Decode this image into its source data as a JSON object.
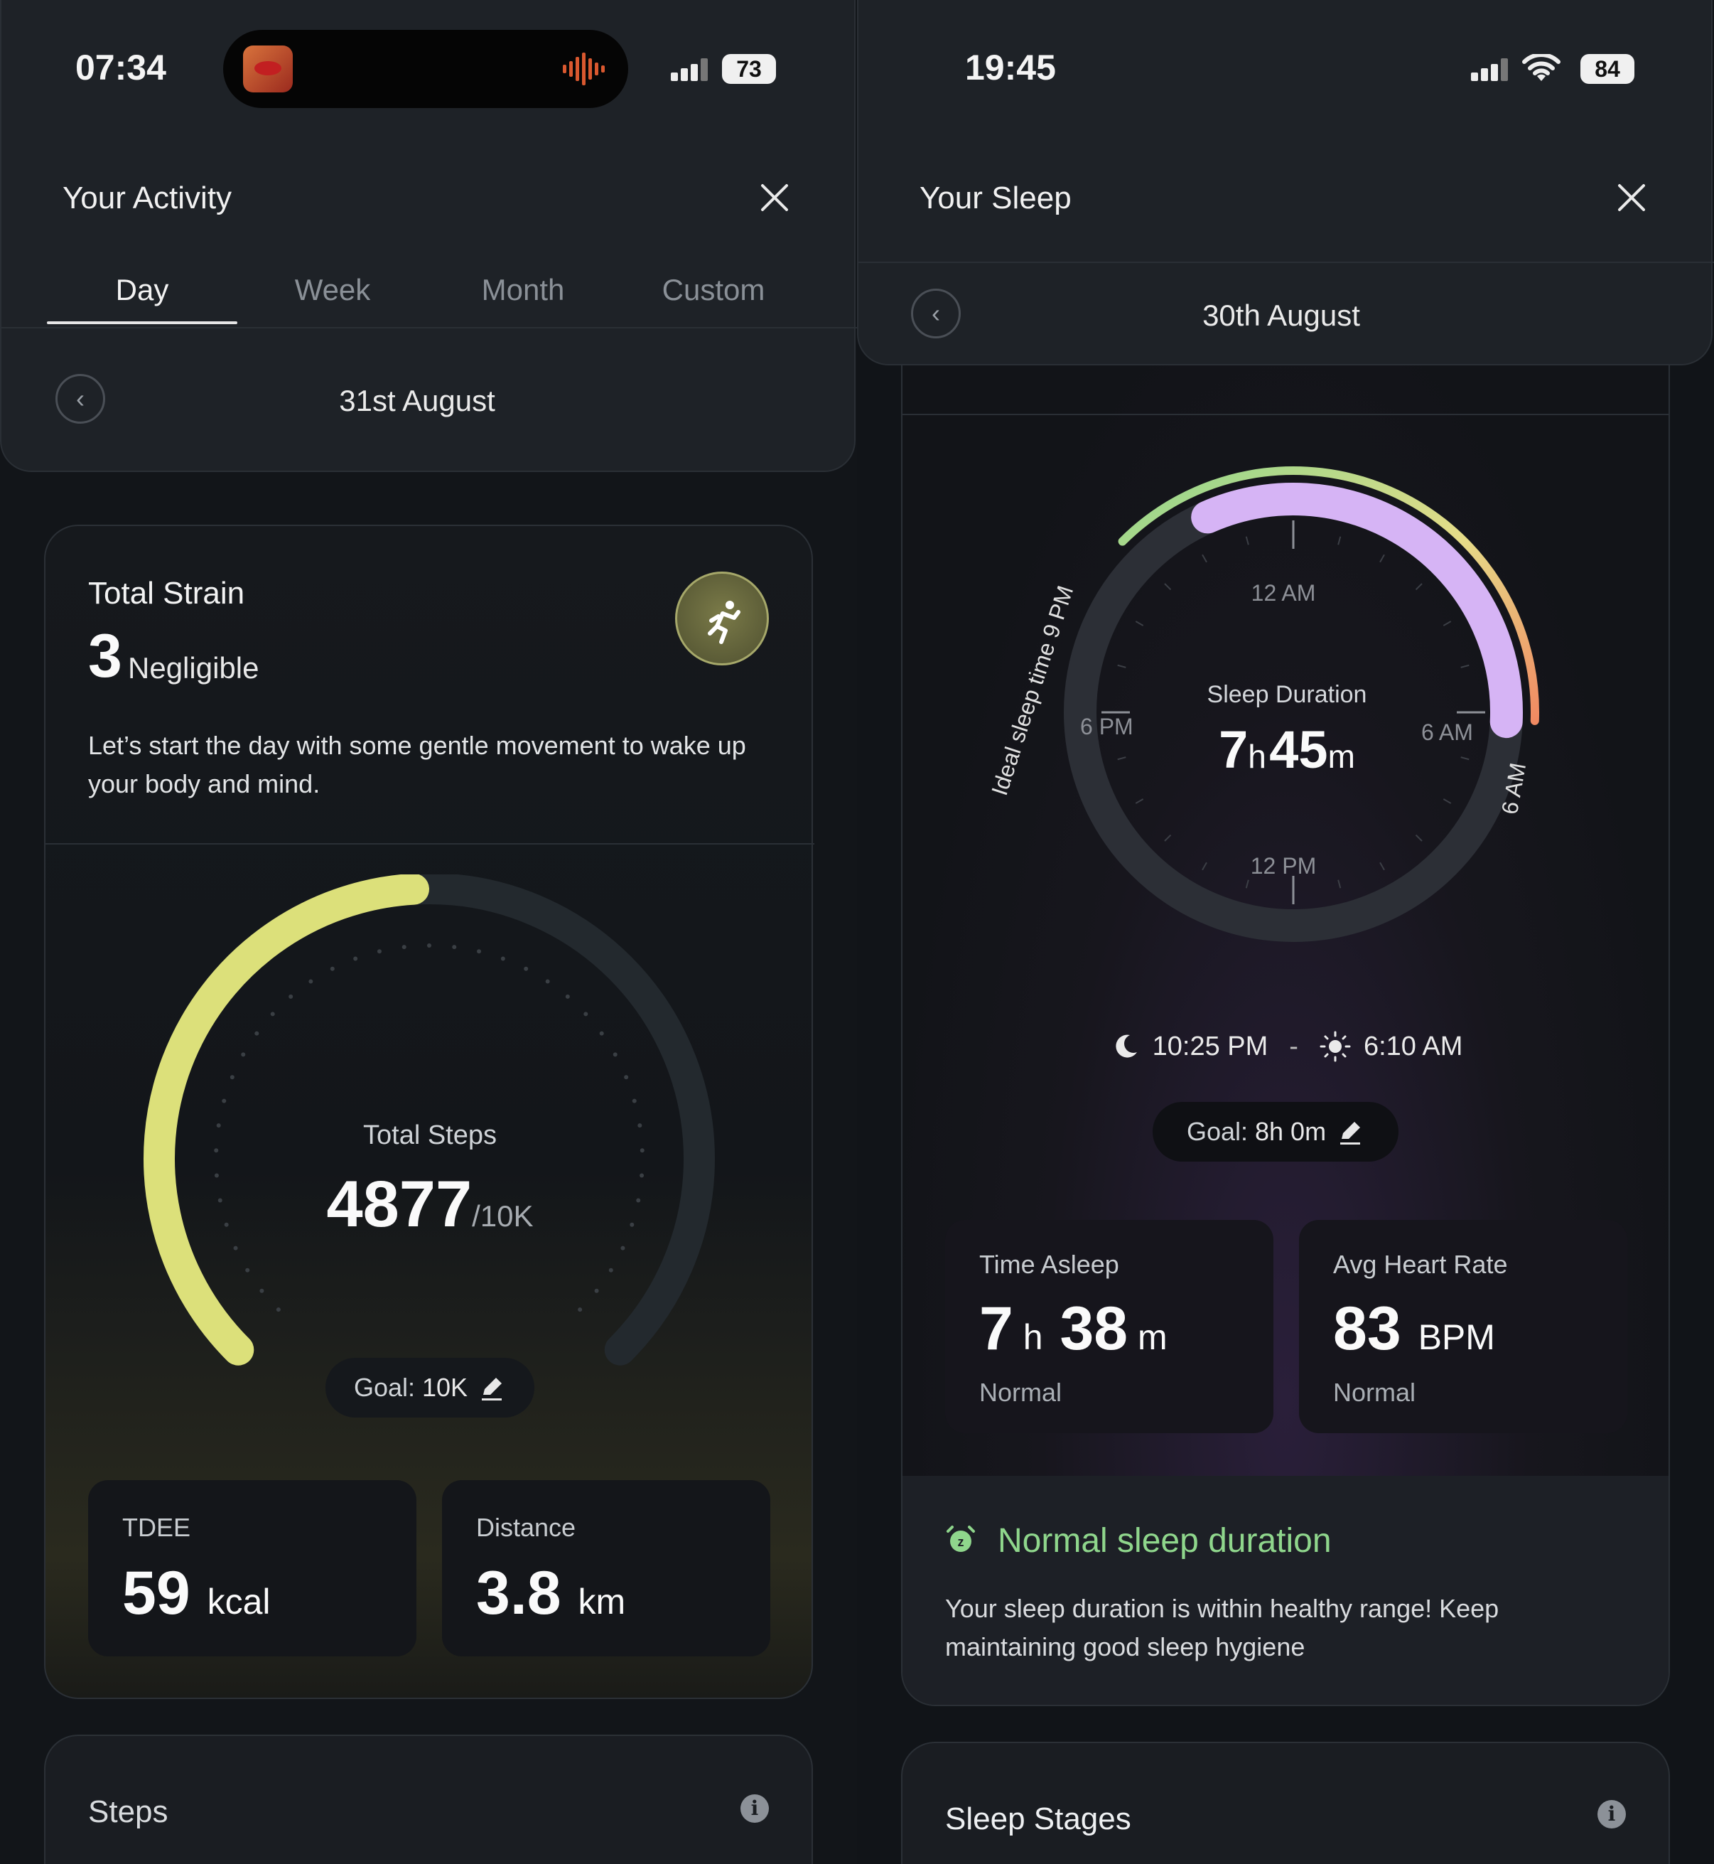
{
  "left": {
    "status": {
      "time": "07:34",
      "battery": "73"
    },
    "header": {
      "title": "Your Activity"
    },
    "tabs": [
      {
        "label": "Day",
        "active": true
      },
      {
        "label": "Week",
        "active": false
      },
      {
        "label": "Month",
        "active": false
      },
      {
        "label": "Custom",
        "active": false
      }
    ],
    "date": "31st August",
    "strain": {
      "title": "Total Strain",
      "value": "3",
      "level": "Negligible",
      "message": "Let’s start the day with some gentle movement to wake up your body and mind.",
      "icon": "running-icon"
    },
    "steps": {
      "label": "Total Steps",
      "value": "4877",
      "goal_suffix": "/10K",
      "progress": 0.4877,
      "goal_label": "Goal:",
      "goal_value": "10K"
    },
    "tdee": {
      "label": "TDEE",
      "value": "59",
      "unit": "kcal"
    },
    "distance": {
      "label": "Distance",
      "value": "3.8",
      "unit": "km"
    },
    "steps_card": {
      "title": "Steps"
    },
    "colors": {
      "accent": "#dce07a",
      "track": "#23292e"
    }
  },
  "right": {
    "status": {
      "time": "19:45",
      "battery": "84"
    },
    "header": {
      "title": "Your Sleep"
    },
    "date": "30th August",
    "clock": {
      "label_12am": "12 AM",
      "label_6pm": "6 PM",
      "label_6am": "6 AM",
      "label_12pm": "12 PM",
      "ideal_label": "Ideal sleep time 9 PM",
      "ideal_end_label": "6 AM",
      "center_label": "Sleep Duration",
      "hours": "7",
      "h": "h",
      "minutes": "45",
      "m": "m"
    },
    "bed_time": "10:25 PM",
    "separator": "-",
    "wake_time": "6:10 AM",
    "goal": {
      "label": "Goal:",
      "value": "8h 0m"
    },
    "time_asleep": {
      "label": "Time Asleep",
      "hours": "7",
      "h": "h",
      "minutes": "38",
      "m": "m",
      "status": "Normal"
    },
    "heart_rate": {
      "label": "Avg Heart Rate",
      "value": "83",
      "unit": "BPM",
      "status": "Normal"
    },
    "insight": {
      "title": "Normal sleep duration",
      "body": "Your sleep duration is within healthy range! Keep maintaining good sleep hygiene"
    },
    "stages_card": {
      "title": "Sleep Stages"
    },
    "colors": {
      "sleep_arc": "#d6b4f5",
      "ok": "#8fd68c"
    }
  }
}
